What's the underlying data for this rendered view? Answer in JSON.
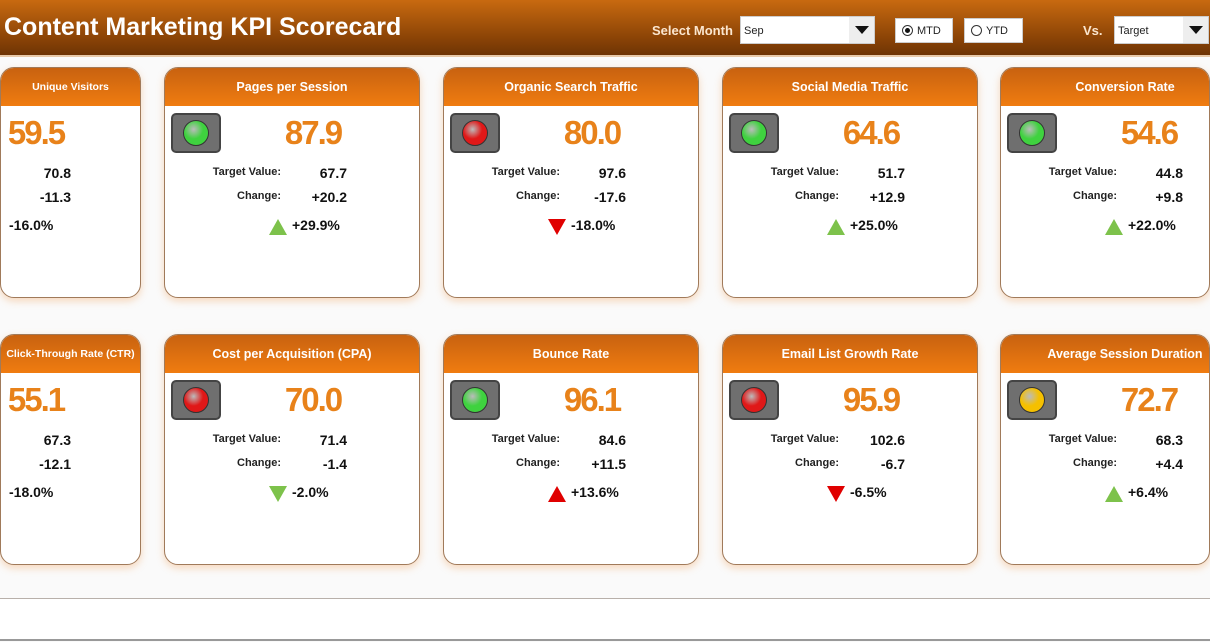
{
  "header": {
    "title": "Content Marketing KPI Scorecard",
    "select_month_label": "Select Month",
    "month_value": "Sep",
    "mtd_label": "MTD",
    "ytd_label": "YTD",
    "mode_selected": "MTD",
    "vs_label": "Vs.",
    "vs_value": "Target"
  },
  "labels": {
    "target": "Target Value:",
    "change": "Change:"
  },
  "colors": {
    "up": "#7dc24b",
    "down": "#e00000",
    "green": "#3fd23f",
    "red": "#e01818",
    "yellow": "#f5c000",
    "accent": "#e8821a"
  },
  "cards": [
    {
      "title": "Unique Visitors",
      "value": "59.5",
      "target": "70.8",
      "change": "-11.3",
      "pct": "-16.0%",
      "arrow": "down",
      "light": "red"
    },
    {
      "title": "Pages per Session",
      "value": "87.9",
      "target": "67.7",
      "change": "+20.2",
      "pct": "+29.9%",
      "arrow": "up",
      "light": "green"
    },
    {
      "title": "Organic Search Traffic",
      "value": "80.0",
      "target": "97.6",
      "change": "-17.6",
      "pct": "-18.0%",
      "arrow": "down",
      "light": "red"
    },
    {
      "title": "Social Media Traffic",
      "value": "64.6",
      "target": "51.7",
      "change": "+12.9",
      "pct": "+25.0%",
      "arrow": "up",
      "light": "green"
    },
    {
      "title": "Conversion Rate",
      "value": "54.6",
      "target": "44.8",
      "change": "+9.8",
      "pct": "+22.0%",
      "arrow": "up",
      "light": "green"
    },
    {
      "title": "Click-Through Rate (CTR)",
      "value": "55.1",
      "target": "67.3",
      "change": "-12.1",
      "pct": "-18.0%",
      "arrow": "down",
      "light": "red"
    },
    {
      "title": "Cost per Acquisition (CPA)",
      "value": "70.0",
      "target": "71.4",
      "change": "-1.4",
      "pct": "-2.0%",
      "arrow": "down-good",
      "light": "red"
    },
    {
      "title": "Bounce Rate",
      "value": "96.1",
      "target": "84.6",
      "change": "+11.5",
      "pct": "+13.6%",
      "arrow": "up-bad",
      "light": "green"
    },
    {
      "title": "Email List Growth Rate",
      "value": "95.9",
      "target": "102.6",
      "change": "-6.7",
      "pct": "-6.5%",
      "arrow": "down",
      "light": "red"
    },
    {
      "title": "Average Session Duration",
      "value": "72.7",
      "target": "68.3",
      "change": "+4.4",
      "pct": "+6.4%",
      "arrow": "up",
      "light": "yellow"
    }
  ]
}
